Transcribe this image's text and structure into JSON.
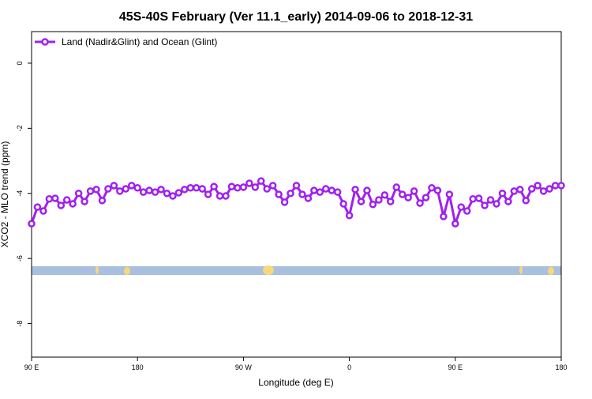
{
  "chart_data": {
    "type": "line",
    "title": "45S-40S February (Ver 11.1_early)   2014-09-06 to 2018-12-31",
    "x_label": "Longitude (deg E)",
    "y_label": "XCO2 - MLO trend (ppm)",
    "legend_position": "top-left",
    "xlim": [
      90,
      540
    ],
    "ylim": [
      -9.03,
      0.97
    ],
    "xticks": [
      {
        "value": 90,
        "label": "90 E"
      },
      {
        "value": 180,
        "label": "180"
      },
      {
        "value": 270,
        "label": "90 W"
      },
      {
        "value": 360,
        "label": "0"
      },
      {
        "value": 450,
        "label": "90 E"
      },
      {
        "value": 540,
        "label": "180"
      }
    ],
    "yticks": [
      -8,
      -6,
      -4,
      -2,
      0
    ],
    "x": [
      90,
      95,
      100,
      105,
      110,
      115,
      120,
      125,
      130,
      135,
      140,
      145,
      150,
      155,
      160,
      165,
      170,
      175,
      180,
      185,
      190,
      195,
      200,
      205,
      210,
      215,
      220,
      225,
      230,
      235,
      240,
      245,
      250,
      255,
      260,
      265,
      270,
      275,
      280,
      285,
      290,
      295,
      300,
      305,
      310,
      315,
      320,
      325,
      330,
      335,
      340,
      345,
      350,
      355,
      360,
      365,
      370,
      375,
      380,
      385,
      390,
      395,
      400,
      405,
      410,
      415,
      420,
      425,
      430,
      435,
      440,
      445,
      450,
      455,
      460,
      465,
      470,
      475,
      480,
      485,
      490,
      495,
      500,
      505,
      510,
      515,
      520,
      525,
      530,
      535,
      540
    ],
    "series": [
      {
        "name": "Land (Nadir&Glint) and Ocean (Glint)",
        "color": "#a020f0",
        "values": [
          -4.93,
          -4.42,
          -4.54,
          -4.17,
          -4.15,
          -4.37,
          -4.2,
          -4.32,
          -4.0,
          -4.25,
          -3.93,
          -3.88,
          -4.22,
          -3.86,
          -3.76,
          -3.93,
          -3.86,
          -3.76,
          -3.83,
          -3.96,
          -3.91,
          -3.96,
          -3.88,
          -4.0,
          -4.08,
          -3.98,
          -3.88,
          -3.83,
          -3.83,
          -3.86,
          -4.03,
          -3.79,
          -4.08,
          -4.08,
          -3.79,
          -3.83,
          -3.81,
          -3.69,
          -3.81,
          -3.62,
          -3.86,
          -3.76,
          -4.03,
          -4.27,
          -4.0,
          -3.76,
          -4.03,
          -4.15,
          -3.91,
          -3.96,
          -3.86,
          -3.91,
          -3.96,
          -4.32,
          -4.68,
          -3.88,
          -4.25,
          -3.91,
          -4.34,
          -4.2,
          -4.05,
          -4.25,
          -3.81,
          -4.03,
          -4.13,
          -3.93,
          -4.3,
          -4.13,
          -3.83,
          -3.91,
          -4.71,
          -4.03,
          -4.93,
          -4.42,
          -4.54,
          -4.17,
          -4.15,
          -4.37,
          -4.2,
          -4.32,
          -4.0,
          -4.25,
          -3.93,
          -3.88,
          -4.22,
          -3.86,
          -3.76,
          -3.93,
          -3.86,
          -3.76,
          -3.76
        ]
      }
    ]
  }
}
